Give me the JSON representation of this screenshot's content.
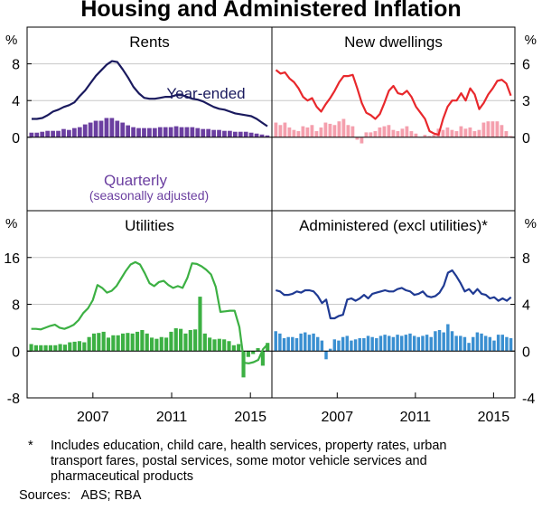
{
  "title": "Housing and Administered Inflation",
  "footnote_marker": "*",
  "footnote": "Includes education, child care, health services, property rates, urban transport fares, postal services, some motor vehicle services and pharmaceutical products",
  "sources": "Sources:   ABS; RBA",
  "chart_data": {
    "type": "line_and_bar_panels",
    "x_ticks": [
      2007,
      2011,
      2015
    ],
    "x_range": [
      2003.75,
      2016.0
    ],
    "unit": "%",
    "bar_type": "Quarterly (seasonally adjusted)",
    "line_type": "Year-ended",
    "colors": {
      "line_dark": "#1a1a5e",
      "rents_bar": "#6b3fa0",
      "red_line": "#e8282c",
      "pink_bar": "#f49fad",
      "green": "#3cb043",
      "blue_line": "#1f3a93",
      "blue_bar": "#3a8fd1",
      "quarterly_label": "#6b3fa0",
      "year_ended_label": "#1a1a5e"
    },
    "panels": [
      {
        "name": "Rents",
        "axis_side": "left",
        "y_range": [
          -8,
          12
        ],
        "y_ticks": [
          0,
          4,
          8
        ],
        "labels": {
          "line": "Year-ended",
          "bar": [
            "Quarterly",
            "(seasonally adjusted)"
          ]
        },
        "line": [
          2.0,
          2.0,
          2.1,
          2.4,
          2.8,
          3.0,
          3.3,
          3.5,
          3.8,
          4.5,
          5.1,
          5.9,
          6.7,
          7.3,
          7.9,
          8.3,
          8.2,
          7.4,
          6.5,
          5.5,
          4.8,
          4.3,
          4.2,
          4.2,
          4.3,
          4.4,
          4.4,
          4.6,
          4.6,
          4.4,
          4.2,
          4.1,
          3.9,
          3.6,
          3.3,
          3.1,
          3.0,
          2.8,
          2.6,
          2.5,
          2.4,
          2.3,
          2.0,
          1.6,
          1.2
        ],
        "bars": [
          0.5,
          0.5,
          0.6,
          0.7,
          0.7,
          0.7,
          0.9,
          0.8,
          1.0,
          1.1,
          1.4,
          1.6,
          1.8,
          1.8,
          2.1,
          2.1,
          1.8,
          1.6,
          1.3,
          1.1,
          1.0,
          1.0,
          1.0,
          1.0,
          1.1,
          1.1,
          1.1,
          1.2,
          1.1,
          1.1,
          1.1,
          1.0,
          0.9,
          0.9,
          0.8,
          0.8,
          0.7,
          0.7,
          0.6,
          0.6,
          0.6,
          0.5,
          0.4,
          0.3,
          0.2
        ]
      },
      {
        "name": "New dwellings",
        "axis_side": "right",
        "y_range": [
          -6,
          9
        ],
        "y_ticks": [
          0,
          3,
          6
        ],
        "line": [
          5.5,
          5.2,
          5.3,
          4.8,
          4.5,
          4.0,
          3.3,
          3.0,
          3.2,
          2.5,
          2.1,
          2.7,
          3.2,
          3.8,
          4.5,
          5.0,
          5.0,
          5.1,
          4.0,
          2.8,
          2.0,
          1.8,
          1.5,
          1.9,
          2.8,
          3.8,
          4.2,
          3.6,
          3.5,
          3.8,
          3.3,
          2.5,
          2.0,
          1.5,
          0.5,
          0.3,
          0.2,
          1.5,
          2.5,
          3.0,
          3.0,
          3.6,
          3.0,
          4.0,
          3.5,
          2.3,
          2.8,
          3.5,
          4.0,
          4.6,
          4.7,
          4.4,
          3.4
        ],
        "bars": [
          1.2,
          1.0,
          1.2,
          0.8,
          0.6,
          0.5,
          0.9,
          0.8,
          1.0,
          0.5,
          0.8,
          1.2,
          1.1,
          1.0,
          1.3,
          1.5,
          1.0,
          0.9,
          -0.2,
          -0.5,
          0.4,
          0.4,
          0.5,
          0.8,
          0.9,
          1.0,
          0.6,
          0.5,
          0.7,
          0.9,
          0.5,
          0.3,
          0.0,
          0.2,
          0.1,
          0.2,
          0.7,
          0.6,
          0.8,
          0.6,
          0.5,
          0.9,
          0.7,
          0.8,
          0.5,
          0.6,
          1.2,
          1.3,
          1.3,
          1.3,
          1.0,
          0.5,
          0.1
        ]
      },
      {
        "name": "Utilities",
        "axis_side": "left",
        "y_range": [
          -8,
          24
        ],
        "y_ticks": [
          -8,
          0,
          8,
          16
        ],
        "line": [
          3.8,
          3.8,
          3.7,
          4.0,
          4.3,
          4.5,
          4.0,
          3.8,
          4.1,
          4.5,
          5.3,
          6.5,
          7.3,
          8.7,
          11.3,
          10.8,
          10.0,
          10.3,
          11.1,
          12.4,
          13.7,
          14.8,
          15.2,
          14.8,
          13.3,
          11.6,
          11.1,
          11.8,
          12.0,
          11.3,
          10.8,
          11.1,
          10.8,
          12.5,
          15.0,
          14.9,
          14.5,
          13.9,
          13.1,
          11.0,
          6.7,
          6.8,
          6.9,
          6.9,
          4.1,
          -2.0,
          -2.1,
          -1.9,
          -1.5,
          0.3,
          1.2
        ],
        "bars": [
          1.2,
          1.0,
          1.0,
          1.0,
          1.0,
          1.0,
          1.2,
          1.1,
          1.5,
          1.6,
          1.7,
          1.5,
          2.4,
          3.0,
          3.1,
          3.3,
          2.3,
          2.7,
          2.7,
          3.0,
          3.1,
          3.0,
          3.3,
          3.6,
          3.0,
          2.3,
          2.1,
          2.4,
          2.3,
          3.3,
          3.9,
          3.8,
          3.0,
          3.6,
          3.7,
          9.3,
          3.0,
          2.3,
          2.0,
          2.1,
          2.0,
          1.7,
          1.0,
          1.2,
          -4.5,
          -1.0,
          -0.5,
          0.5,
          -2.5,
          1.4
        ]
      },
      {
        "name": "Administered (excl utilities)*",
        "axis_side": "right",
        "y_range": [
          -4,
          12
        ],
        "y_ticks": [
          -4,
          0,
          4,
          8
        ],
        "line": [
          5.2,
          5.1,
          4.8,
          4.8,
          4.9,
          5.1,
          5.0,
          5.2,
          5.2,
          5.1,
          4.7,
          4.1,
          4.4,
          2.8,
          2.8,
          3.0,
          3.1,
          4.4,
          4.5,
          4.3,
          4.5,
          4.8,
          4.5,
          4.9,
          5.0,
          5.1,
          5.2,
          5.1,
          5.1,
          5.3,
          5.4,
          5.2,
          5.1,
          4.8,
          4.9,
          5.1,
          4.7,
          4.6,
          4.7,
          5.0,
          5.6,
          6.7,
          6.9,
          6.4,
          5.8,
          5.1,
          5.3,
          4.9,
          5.3,
          4.9,
          4.8,
          4.5,
          4.6,
          4.3,
          4.5,
          4.3,
          4.6
        ],
        "bars": [
          1.7,
          1.5,
          1.1,
          1.2,
          1.2,
          1.1,
          1.5,
          1.6,
          1.4,
          1.5,
          1.2,
          0.9,
          -0.7,
          0.2,
          1.0,
          0.9,
          1.2,
          1.3,
          0.9,
          1.0,
          1.1,
          1.1,
          1.3,
          1.2,
          1.1,
          1.3,
          1.4,
          1.3,
          1.2,
          1.4,
          1.3,
          1.4,
          1.5,
          1.3,
          1.2,
          1.3,
          1.4,
          1.2,
          1.7,
          1.8,
          1.6,
          2.3,
          1.7,
          1.3,
          1.3,
          1.2,
          0.7,
          1.2,
          1.6,
          1.5,
          1.3,
          1.2,
          0.9,
          1.4,
          1.4,
          1.2,
          1.1
        ]
      }
    ]
  }
}
